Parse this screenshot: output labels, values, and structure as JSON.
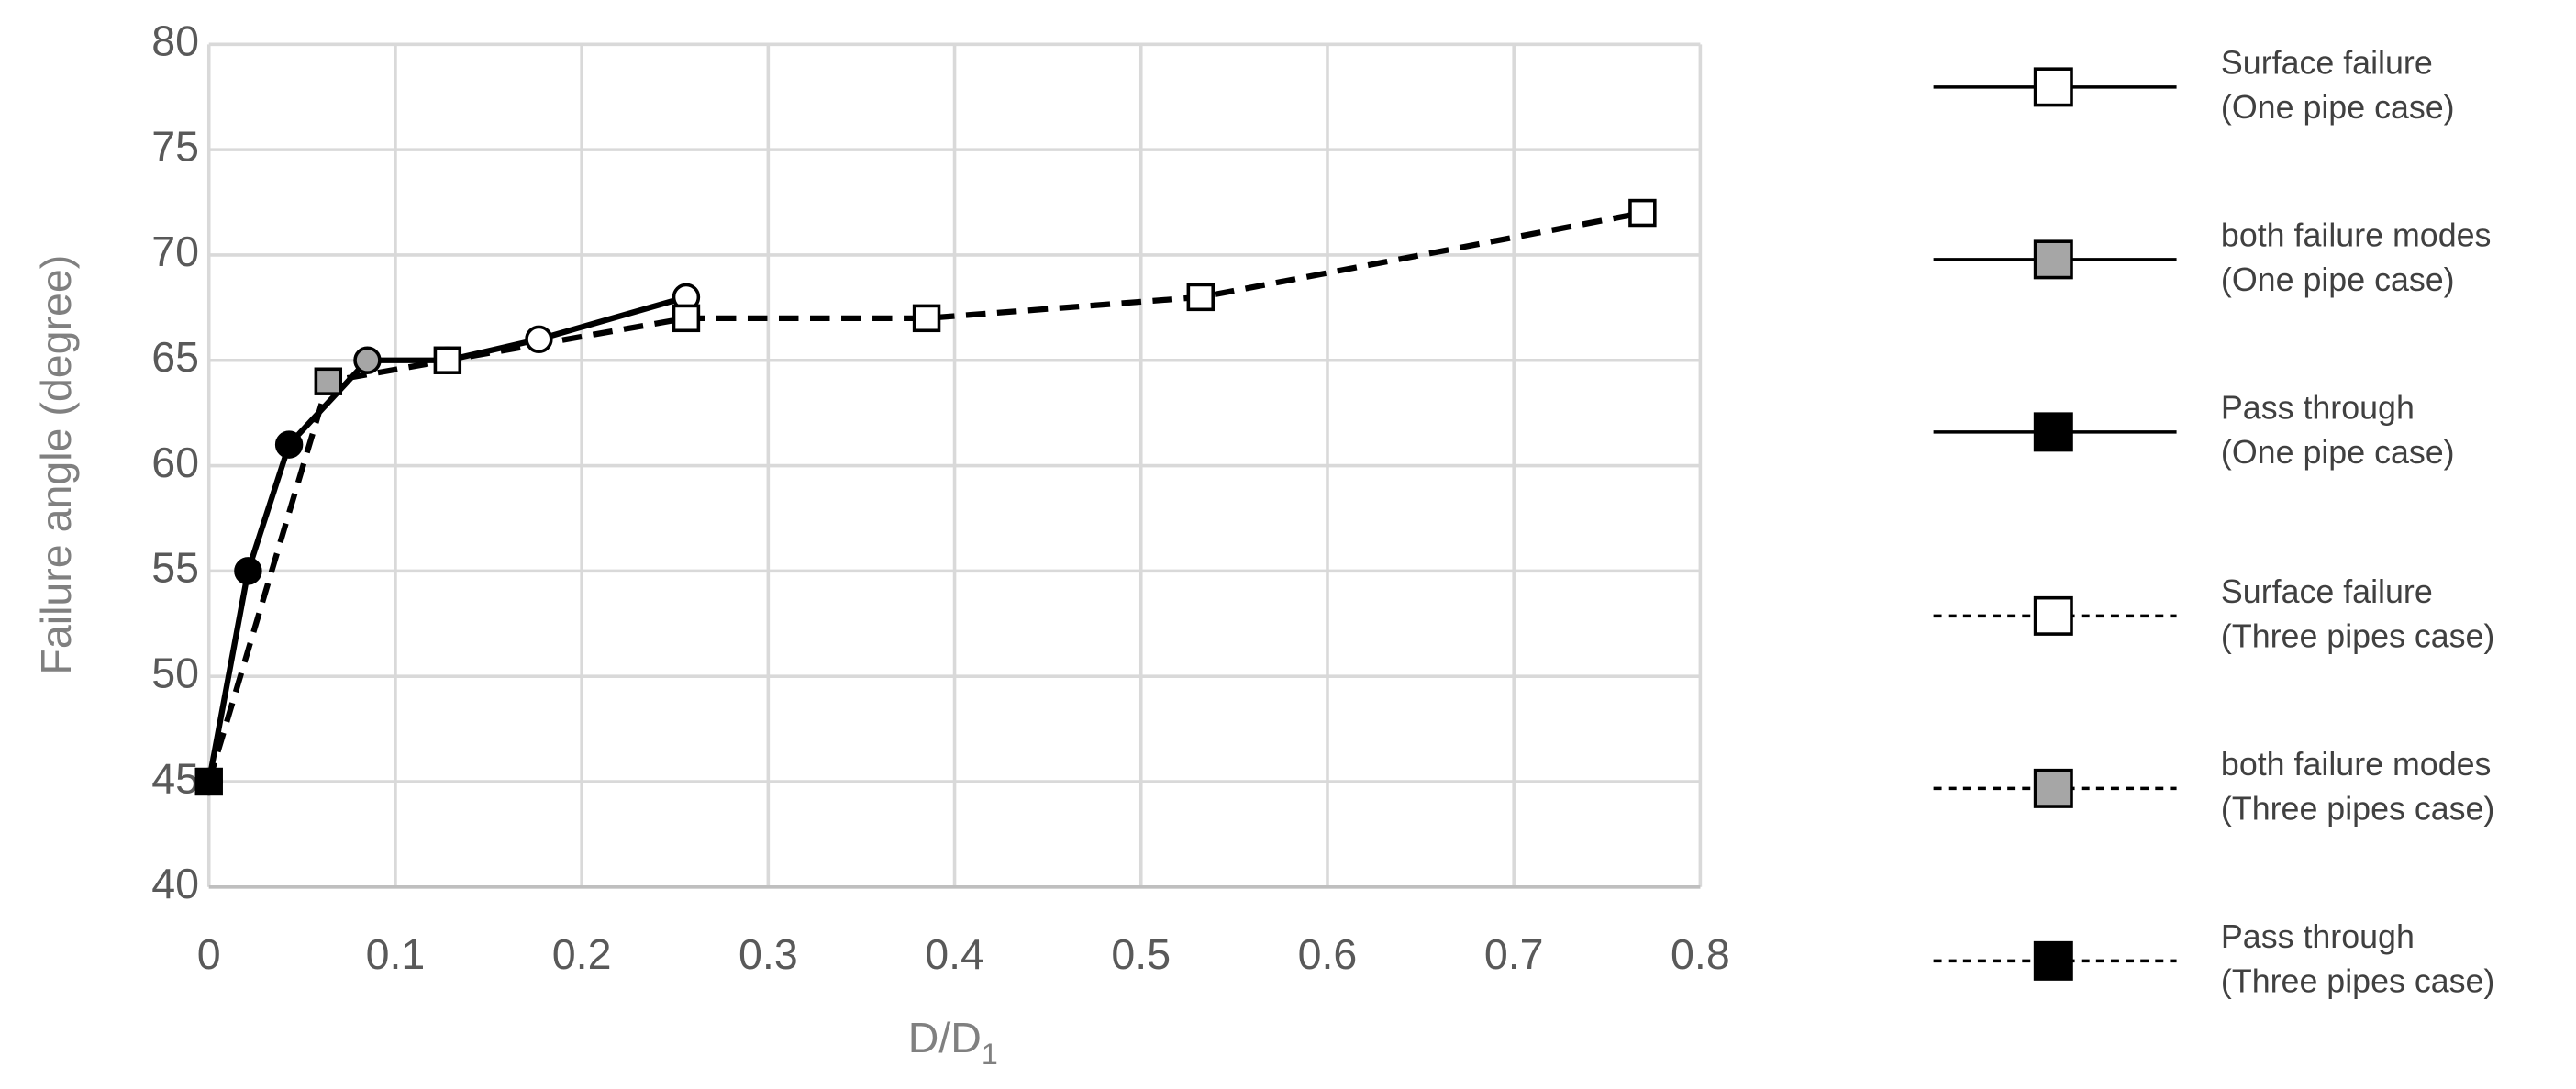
{
  "chart_data": {
    "type": "line",
    "y_label": "Failure angle (degree)",
    "x_label": {
      "main": "D/D",
      "sub": "1"
    },
    "xlim": [
      0,
      0.8
    ],
    "xticks": [
      0,
      0.1,
      0.2,
      0.3,
      0.4,
      0.5,
      0.6,
      0.7,
      0.8
    ],
    "ylim": [
      40,
      80
    ],
    "yticks": [
      40,
      45,
      50,
      55,
      60,
      65,
      70,
      75,
      80
    ],
    "grid": true,
    "series": [
      {
        "name": [
          "Surface failure",
          "(One pipe case)"
        ],
        "color": "#ffffff",
        "dash": false,
        "marker": "circle",
        "x": [
          0.128,
          0.177,
          0.256
        ],
        "values": [
          65,
          66,
          68
        ]
      },
      {
        "name": [
          "both failure modes",
          "(One pipe case)"
        ],
        "color": "#a6a6a6",
        "dash": false,
        "marker": "circle",
        "x": [
          0.085
        ],
        "values": [
          65
        ]
      },
      {
        "name": [
          "Pass through",
          "(One pipe case)"
        ],
        "color": "#000000",
        "dash": false,
        "marker": "circle",
        "x": [
          0,
          0.021,
          0.043
        ],
        "values": [
          45,
          55,
          61
        ]
      },
      {
        "name": [
          "Surface failure",
          "(Three pipes case)"
        ],
        "color": "#ffffff",
        "dash": true,
        "marker": "square",
        "x": [
          0.128,
          0.256,
          0.385,
          0.532,
          0.769
        ],
        "values": [
          65,
          67,
          67,
          68,
          72
        ]
      },
      {
        "name": [
          "both failure modes",
          "(Three pipes case)"
        ],
        "color": "#a6a6a6",
        "dash": true,
        "marker": "square",
        "x": [
          0.064
        ],
        "values": [
          64
        ]
      },
      {
        "name": [
          "Pass through",
          "(Three pipes case)"
        ],
        "color": "#000000",
        "dash": true,
        "marker": "square",
        "x": [
          0
        ],
        "values": [
          45
        ]
      }
    ]
  }
}
